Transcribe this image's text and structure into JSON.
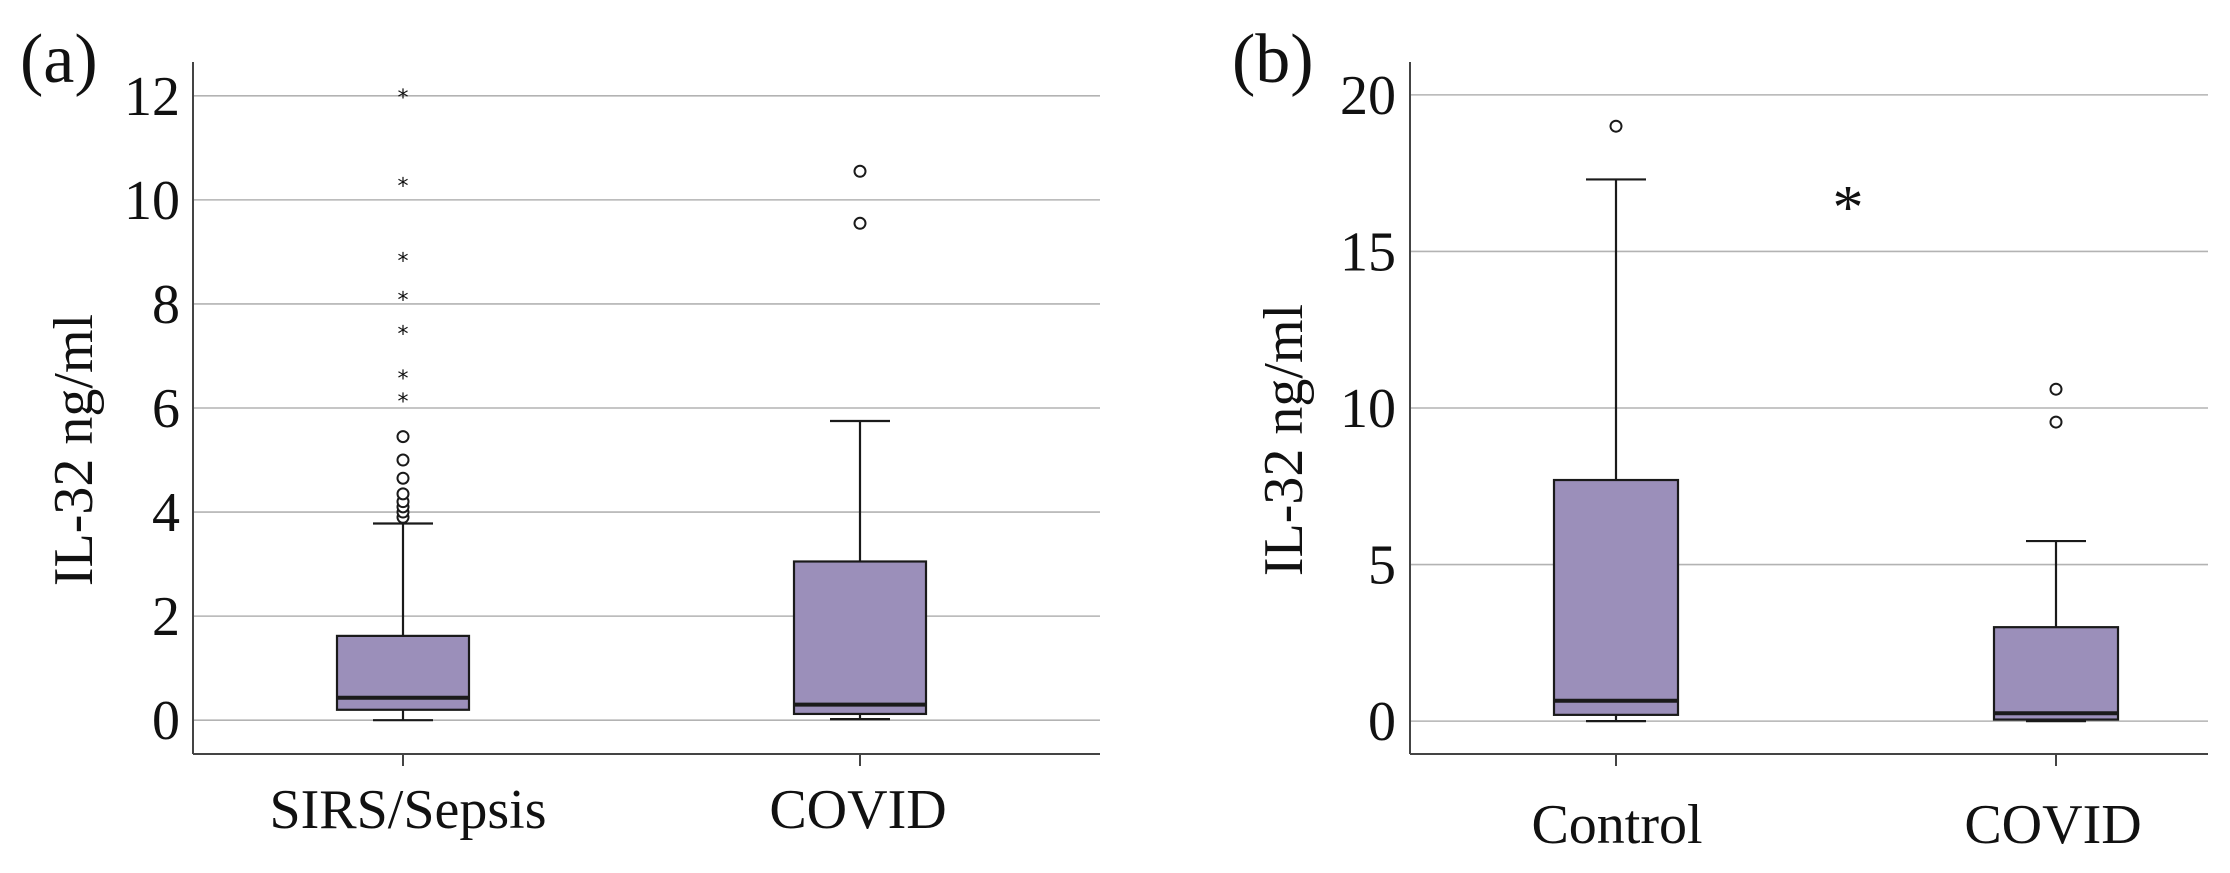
{
  "colors": {
    "box_fill": "#9b8fba",
    "line": "#1a1a1a",
    "grid": "#b3b3b3",
    "background": "#ffffff"
  },
  "chart_data": [
    {
      "panel_label": "(a)",
      "type": "box",
      "ylabel": "IL-32 ng/ml",
      "xlabel": "",
      "ylim": [
        -0.65,
        12.65
      ],
      "yticks": [
        0,
        2,
        4,
        6,
        8,
        10,
        12
      ],
      "ytick_labels": [
        "0",
        "2",
        "4",
        "6",
        "8",
        "10",
        "12"
      ],
      "grid": "horizontal",
      "categories": [
        "SIRS/Sepsis",
        "COVID"
      ],
      "boxes": [
        {
          "category": "SIRS/Sepsis",
          "whisker_low": 0.0,
          "q1": 0.2,
          "median": 0.43,
          "q3": 1.62,
          "whisker_high": 3.78,
          "outliers": [
            3.9,
            4.0,
            4.1,
            4.2,
            4.35,
            4.65,
            5.0,
            5.45
          ],
          "extremes": [
            6.15,
            6.6,
            7.45,
            8.1,
            8.85,
            10.3,
            12.0
          ]
        },
        {
          "category": "COVID",
          "whisker_low": 0.02,
          "q1": 0.12,
          "median": 0.3,
          "q3": 3.05,
          "whisker_high": 5.75,
          "outliers": [
            9.55,
            10.55
          ],
          "extremes": []
        }
      ]
    },
    {
      "panel_label": "(b)",
      "type": "box",
      "ylabel": "IL-32 ng/ml",
      "xlabel": "",
      "ylim": [
        -1.05,
        21.05
      ],
      "yticks": [
        0,
        5,
        10,
        15,
        20
      ],
      "ytick_labels": [
        "0",
        "5",
        "10",
        "15",
        "20"
      ],
      "grid": "horizontal",
      "categories": [
        "Control",
        "COVID"
      ],
      "significance_marker": "*",
      "boxes": [
        {
          "category": "Control",
          "whisker_low": 0.0,
          "q1": 0.2,
          "median": 0.65,
          "q3": 7.7,
          "whisker_high": 17.3,
          "outliers": [
            19.0
          ],
          "extremes": []
        },
        {
          "category": "COVID",
          "whisker_low": 0.0,
          "q1": 0.05,
          "median": 0.25,
          "q3": 3.0,
          "whisker_high": 5.75,
          "outliers": [
            9.55,
            10.6
          ],
          "extremes": []
        }
      ]
    }
  ]
}
